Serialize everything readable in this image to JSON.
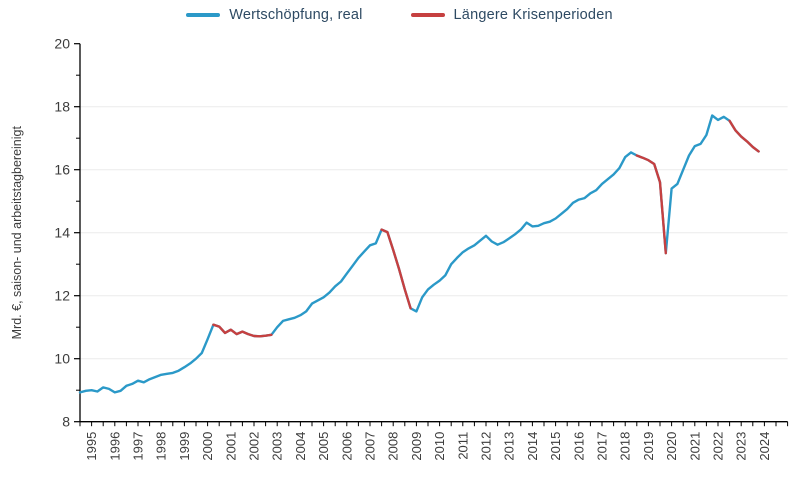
{
  "legend": {
    "series_label": "Wertschöpfung, real",
    "crisis_label": "Längere Krisenperioden"
  },
  "colors": {
    "series": "#2b99c8",
    "crisis": "#c64040",
    "axis": "#000000",
    "grid": "#ebebeb",
    "tick_text": "#3c3c3c",
    "background": "#ffffff"
  },
  "chart_data": {
    "type": "line",
    "title": "",
    "xlabel": "",
    "ylabel": "Mrd. €, saison- und arbeitstagbereinigt",
    "frequency": "quarterly",
    "x_first_quarter": "1995Q1",
    "x_last_quarter": "2024Q2",
    "ylim": [
      8,
      20
    ],
    "yticks_labeled": [
      8,
      10,
      12,
      14,
      16,
      18,
      20
    ],
    "yticks_minor": [
      9,
      11,
      13,
      15,
      17,
      19
    ],
    "grid_values": [
      10,
      12,
      14,
      16,
      18
    ],
    "x_axis_range_years": [
      1995,
      2025.5
    ],
    "xtick_interval_years": 0.5,
    "year_labels": [
      1995,
      1996,
      1997,
      1998,
      1999,
      2000,
      2001,
      2002,
      2003,
      2004,
      2005,
      2006,
      2007,
      2008,
      2009,
      2010,
      2011,
      2012,
      2013,
      2014,
      2015,
      2016,
      2017,
      2018,
      2019,
      2020,
      2021,
      2022,
      2023,
      2024
    ],
    "values": [
      8.93,
      8.98,
      9.0,
      8.96,
      9.09,
      9.04,
      8.93,
      8.98,
      9.14,
      9.2,
      9.3,
      9.25,
      9.35,
      9.42,
      9.49,
      9.52,
      9.55,
      9.62,
      9.73,
      9.85,
      10.0,
      10.18,
      10.62,
      11.08,
      11.02,
      10.82,
      10.92,
      10.78,
      10.86,
      10.78,
      10.72,
      10.71,
      10.73,
      10.76,
      11.0,
      11.2,
      11.25,
      11.3,
      11.38,
      11.5,
      11.75,
      11.85,
      11.95,
      12.1,
      12.3,
      12.45,
      12.7,
      12.95,
      13.2,
      13.4,
      13.6,
      13.66,
      14.1,
      14.02,
      13.45,
      12.85,
      12.2,
      11.6,
      11.5,
      11.95,
      12.2,
      12.35,
      12.48,
      12.65,
      13.0,
      13.2,
      13.38,
      13.5,
      13.6,
      13.75,
      13.9,
      13.72,
      13.62,
      13.7,
      13.82,
      13.95,
      14.1,
      14.32,
      14.2,
      14.22,
      14.3,
      14.35,
      14.45,
      14.6,
      14.75,
      14.95,
      15.05,
      15.1,
      15.25,
      15.35,
      15.55,
      15.7,
      15.85,
      16.05,
      16.4,
      16.55,
      16.45,
      16.38,
      16.3,
      16.18,
      15.6,
      13.35,
      15.4,
      15.55,
      16.0,
      16.45,
      16.75,
      16.82,
      17.1,
      17.72,
      17.58,
      17.68,
      17.55,
      17.25,
      17.05,
      16.9,
      16.72,
      16.58
    ],
    "crisis_segments_index_ranges": [
      [
        23,
        33
      ],
      [
        52,
        57
      ],
      [
        96,
        101
      ],
      [
        112,
        117
      ]
    ],
    "crisis_segments_quarters": [
      [
        "2000Q4",
        "2003Q2"
      ],
      [
        "2008Q1",
        "2009Q2"
      ],
      [
        "2019Q1",
        "2020Q2"
      ],
      [
        "2023Q1",
        "2024Q2"
      ]
    ],
    "legend_position": "top-center",
    "grid": "horizontal-only"
  }
}
